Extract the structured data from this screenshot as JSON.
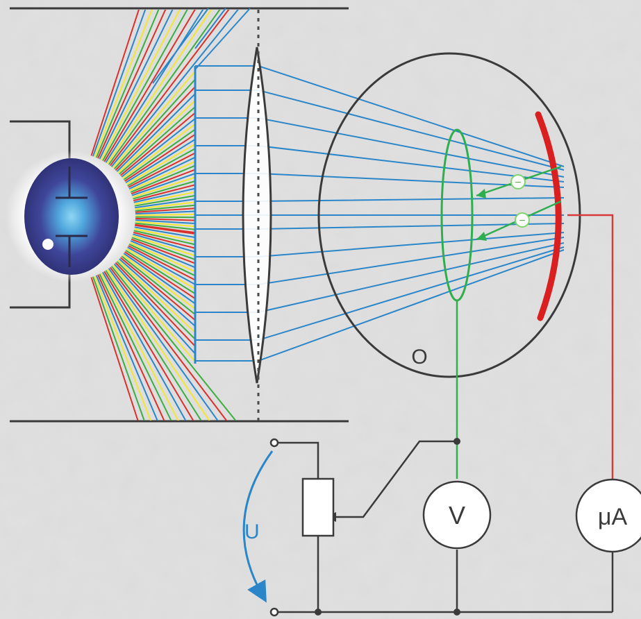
{
  "background": "#d9d9d9",
  "labels": {
    "voltmeter": "V",
    "microammeter": "μA",
    "voltage": "U",
    "electron_1": "−",
    "electron_2": "−",
    "anode_ring": "O"
  },
  "colors": {
    "wire": "#3a3a3a",
    "light_ray": "#2a86c8",
    "anode": "#2fae4f",
    "cathode": "#d91f1f",
    "cathode_wire": "#d83a3a",
    "spectrum": [
      "#d9302b",
      "#2a86c8",
      "#f2e630",
      "#3cae3f"
    ],
    "lamp": "#3e3f8e",
    "lamp_glow": "#7ec8ee"
  },
  "icons": {
    "lamp": "light-source-icon",
    "lens": "lens-icon",
    "tube": "vacuum-tube-icon",
    "rheostat": "rheostat-icon"
  }
}
